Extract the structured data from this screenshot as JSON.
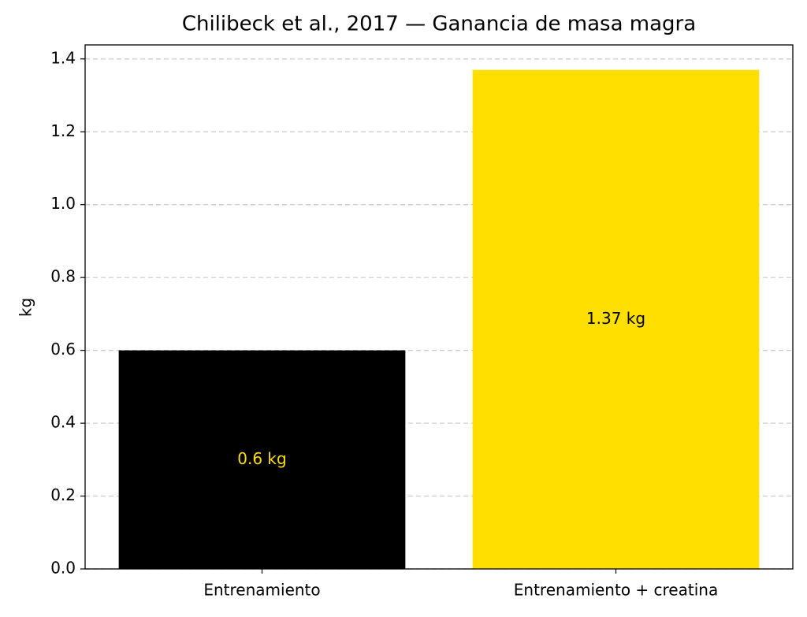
{
  "chart_data": {
    "type": "bar",
    "title": "Chilibeck et al., 2017 — Ganancia de masa magra",
    "ylabel": "kg",
    "categories": [
      "Entrenamiento",
      "Entrenamiento + creatina"
    ],
    "values": [
      0.6,
      1.37
    ],
    "value_labels": [
      "0.6 kg",
      "1.37 kg"
    ],
    "colors": [
      "#000000",
      "#ffdf00"
    ],
    "value_label_colors": [
      "#ffdf00",
      "#000000"
    ],
    "ylim": [
      0,
      1.4385
    ],
    "yticks": [
      {
        "value": 0,
        "label": "0.0"
      },
      0.2,
      0.4,
      0.6,
      0.8,
      {
        "value": 1,
        "label": "1.0"
      },
      1.2,
      1.4
    ],
    "grid": true
  }
}
